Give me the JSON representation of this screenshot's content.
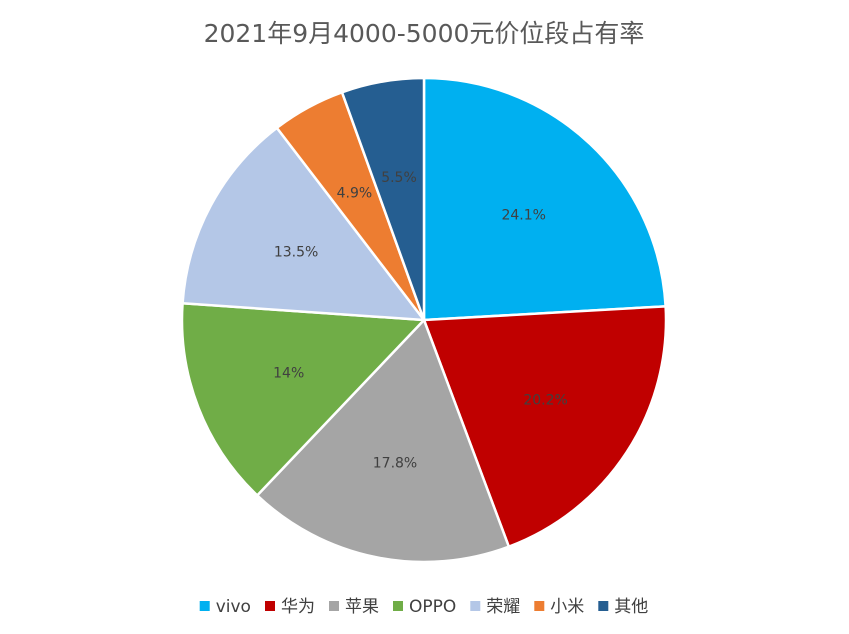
{
  "chart_data": {
    "type": "pie",
    "title": "2021年9月4000-5000元价位段占有率",
    "slices": [
      {
        "label": "vivo",
        "value": 24.1,
        "display": "24.1%",
        "color": "#00B0F0"
      },
      {
        "label": "华为",
        "value": 20.2,
        "display": "20.2%",
        "color": "#C00000"
      },
      {
        "label": "苹果",
        "value": 17.8,
        "display": "17.8%",
        "color": "#A5A5A5"
      },
      {
        "label": "OPPO",
        "value": 14,
        "display": "14%",
        "color": "#70AD47"
      },
      {
        "label": "荣耀",
        "value": 13.5,
        "display": "13.5%",
        "color": "#B4C7E7"
      },
      {
        "label": "小米",
        "value": 4.9,
        "display": "4.9%",
        "color": "#ED7D31"
      },
      {
        "label": "其他",
        "value": 5.5,
        "display": "5.5%",
        "color": "#255E91"
      }
    ],
    "legend_position": "bottom",
    "start_angle_deg": 0,
    "direction": "clockwise"
  }
}
